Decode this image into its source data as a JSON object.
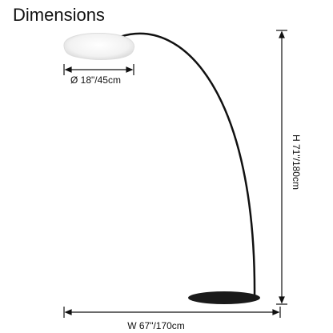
{
  "title": "Dimensions",
  "labels": {
    "diameter": "Ø 18\"/45cm",
    "height": "H 71\"/180cm",
    "width": "W 67\"/170cm"
  }
}
